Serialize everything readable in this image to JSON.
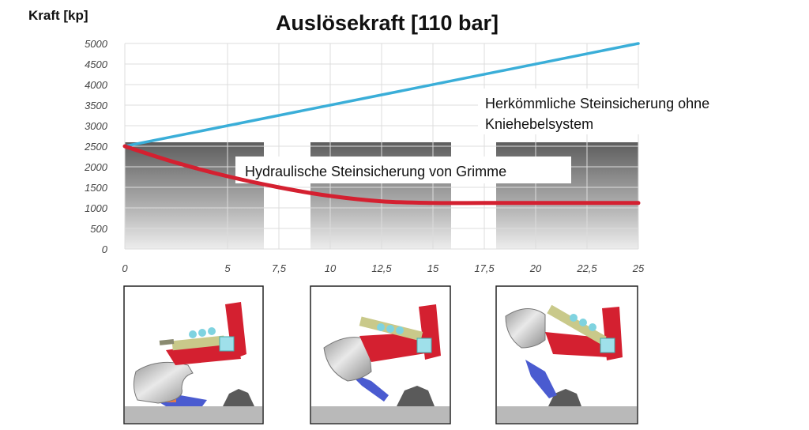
{
  "chart_data": {
    "type": "line",
    "title": "Auslösekraft  [110 bar]",
    "ylabel": "Kraft [kp]",
    "xlabel": "",
    "xlim": [
      0,
      25
    ],
    "ylim": [
      0,
      5000
    ],
    "grid": true,
    "x_tick_labels": [
      "0",
      "5",
      "7,5",
      "10",
      "12,5",
      "15",
      "17,5",
      "20",
      "22,5",
      "25"
    ],
    "y_tick_labels": [
      "0",
      "500",
      "1000",
      "1500",
      "2000",
      "2500",
      "3000",
      "3500",
      "4000",
      "4500",
      "5000"
    ],
    "series": [
      {
        "name": "Herkömmliche Steinsicherung ohne Kniehebelsystem",
        "color": "#3aaed8",
        "x": [
          0,
          25
        ],
        "y": [
          2500,
          5000
        ]
      },
      {
        "name": "Hydraulische Steinsicherung von Grimme",
        "color": "#d42030",
        "x": [
          0,
          2.5,
          5,
          7.5,
          10,
          12.5,
          15,
          17.5,
          20,
          22.5,
          25
        ],
        "y": [
          2500,
          2100,
          1770,
          1500,
          1290,
          1160,
          1120,
          1120,
          1120,
          1120,
          1120
        ]
      }
    ],
    "annotations": {
      "conventional_line1": "Herkömmliche Steinsicherung ohne",
      "conventional_line2": "Kniehebelsystem",
      "hydraulic": "Hydraulische Steinsicherung von  Grimme"
    }
  },
  "colors": {
    "conventional": "#3aaed8",
    "hydraulic": "#d42030",
    "frame_red": "#d42030",
    "ram_yellow": "#c9c98a",
    "spring_cyan": "#7fd3e0",
    "ground": "#b9b9b9"
  },
  "illustrations": [
    "plough-body-position-1-icon",
    "plough-body-position-2-icon",
    "plough-body-position-3-icon"
  ]
}
